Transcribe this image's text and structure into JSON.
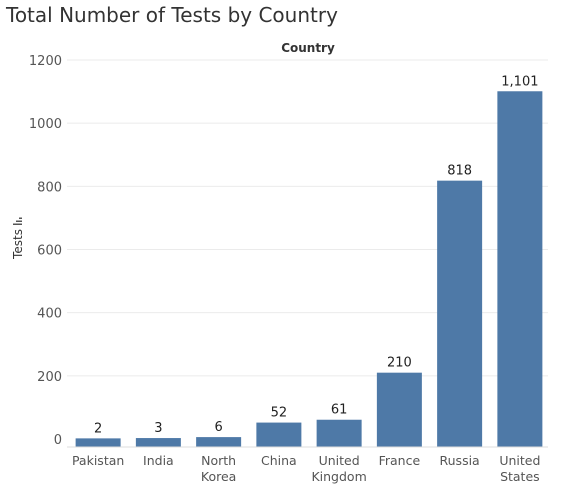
{
  "chart_data": {
    "type": "bar",
    "title": "Total Number of Tests by Country",
    "header": "Country",
    "ylabel": "Tests",
    "ylim": [
      0,
      1200
    ],
    "yticks": [
      0,
      200,
      400,
      600,
      800,
      1000,
      1200
    ],
    "ytick_labels": [
      "0",
      "200",
      "400",
      "600",
      "800",
      "1000",
      "1200"
    ],
    "categories": [
      [
        "Pakistan"
      ],
      [
        "India"
      ],
      [
        "North",
        "Korea"
      ],
      [
        "China"
      ],
      [
        "United",
        "Kingdom"
      ],
      [
        "France"
      ],
      [
        "Russia"
      ],
      [
        "United",
        "States"
      ]
    ],
    "values": [
      2,
      3,
      6,
      52,
      61,
      210,
      818,
      1101
    ],
    "value_labels": [
      "2",
      "3",
      "6",
      "52",
      "61",
      "210",
      "818",
      "1,101"
    ],
    "grid": true,
    "bar_color": "#4e79a7"
  }
}
